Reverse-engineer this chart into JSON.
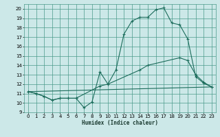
{
  "xlabel": "Humidex (Indice chaleur)",
  "xlim": [
    -0.5,
    23.5
  ],
  "ylim": [
    9,
    20.5
  ],
  "yticks": [
    9,
    10,
    11,
    12,
    13,
    14,
    15,
    16,
    17,
    18,
    19,
    20
  ],
  "xticks": [
    0,
    1,
    2,
    3,
    4,
    5,
    6,
    7,
    8,
    9,
    10,
    11,
    12,
    13,
    14,
    15,
    16,
    17,
    18,
    19,
    20,
    21,
    22,
    23
  ],
  "bg_color": "#cce8e8",
  "grid_color": "#4a9a8a",
  "line_color": "#1a6b5a",
  "line1_x": [
    0,
    1,
    2,
    3,
    4,
    5,
    6,
    7,
    8,
    9,
    10,
    11,
    12,
    13,
    14,
    15,
    16,
    17,
    18,
    19,
    20,
    21,
    22,
    23
  ],
  "line1_y": [
    11.2,
    11.0,
    10.7,
    10.3,
    10.5,
    10.5,
    10.5,
    9.5,
    10.1,
    13.3,
    12.0,
    13.5,
    17.3,
    18.7,
    19.1,
    19.1,
    19.9,
    20.1,
    18.5,
    18.3,
    16.8,
    12.8,
    12.1,
    11.7
  ],
  "line2_x": [
    0,
    1,
    2,
    3,
    4,
    5,
    6,
    9,
    10,
    14,
    15,
    19,
    20,
    21,
    22,
    23
  ],
  "line2_y": [
    11.2,
    11.0,
    10.7,
    10.3,
    10.5,
    10.5,
    10.5,
    11.8,
    12.0,
    13.5,
    14.0,
    14.8,
    14.5,
    13.0,
    12.2,
    11.7
  ],
  "line3_x": [
    0,
    23
  ],
  "line3_y": [
    11.2,
    11.7
  ]
}
